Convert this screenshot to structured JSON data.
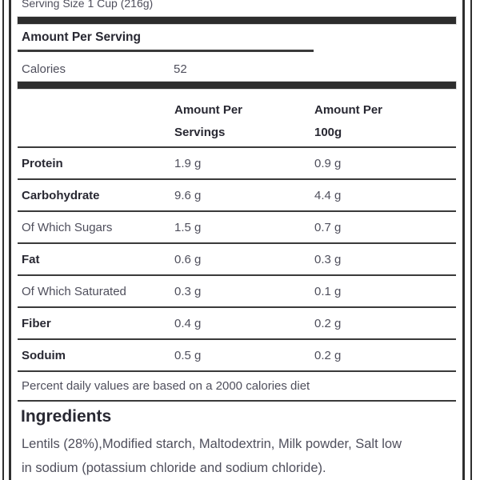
{
  "colors": {
    "bar": "#2d2d2d",
    "divider": "#3a3a3a",
    "text_bold": "#282832",
    "text_regular": "#4f4f5c"
  },
  "label": {
    "serving_size": "Serving Size 1 Cup (216g)",
    "section_heading": "Amount Per Serving",
    "calories": {
      "name": "Calories",
      "value": "52"
    },
    "columns": {
      "per_serving": {
        "line1": "Amount Per",
        "line2": "Servings"
      },
      "per_100g": {
        "line1": "Amount Per",
        "line2": "100g"
      }
    },
    "nutrients": [
      {
        "name": "Protein",
        "per_serving": "1.9 g",
        "per_100g": "0.9 g"
      },
      {
        "name": "Carbohydrate",
        "per_serving": "9.6 g",
        "per_100g": "4.4 g"
      },
      {
        "name": "Of Which Sugars",
        "per_serving": "1.5 g",
        "per_100g": "0.7 g"
      },
      {
        "name": "Fat",
        "per_serving": "0.6 g",
        "per_100g": "0.3 g"
      },
      {
        "name": "Of Which Saturated",
        "per_serving": "0.3 g",
        "per_100g": "0.1 g"
      },
      {
        "name": "Fiber",
        "per_serving": "0.4 g",
        "per_100g": "0.2 g"
      },
      {
        "name": "Soduim",
        "per_serving": "0.5 g",
        "per_100g": "0.2 g"
      }
    ],
    "footnote": "Percent daily values are based on a 2000 calories diet",
    "ingredients": {
      "heading": "Ingredients",
      "text": "Lentils (28%),Modified starch, Maltodextrin, Milk powder, Salt low\nin sodium (potassium chloride and sodium chloride)."
    }
  }
}
